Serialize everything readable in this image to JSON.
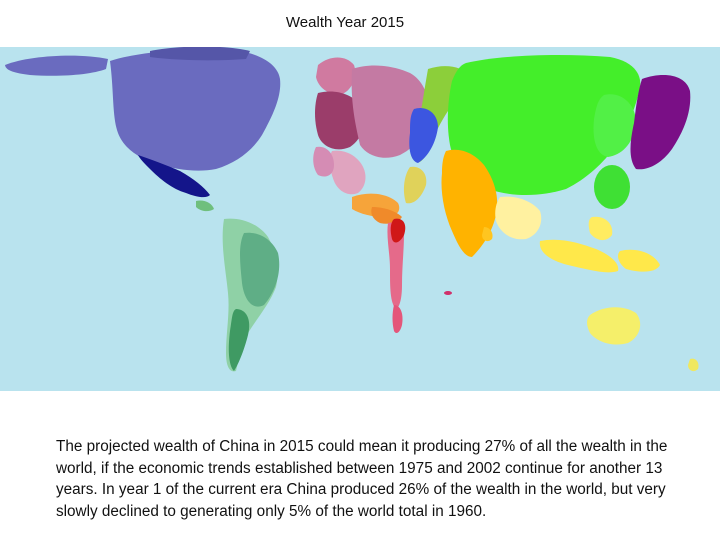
{
  "slide": {
    "title": "Wealth Year 2015",
    "caption": "The projected wealth of China in 2015 could mean it producing 27% of all the wealth in the world, if the economic trends established between 1975 and 2002 continue for another 13 years. In year 1 of the current era China produced 26% of the wealth in the world, but very slowly declined to generating only 5% of the world total in 1960."
  },
  "map": {
    "type": "cartogram",
    "ocean_color": "#b9e3ee",
    "region_colors": {
      "north_america": "#6a6bbf",
      "central_america": "#14158a",
      "south_america": "#5fae86",
      "europe": "#b0628a",
      "eastern_europe": "#3c56e0",
      "middle_east": "#f6a43a",
      "africa": "#d01818",
      "south_asia": "#ffb300",
      "china": "#44ee2a",
      "japan": "#7a0f86",
      "southeast_asia": "#ffe84a",
      "oceania": "#f5ef6a"
    }
  }
}
